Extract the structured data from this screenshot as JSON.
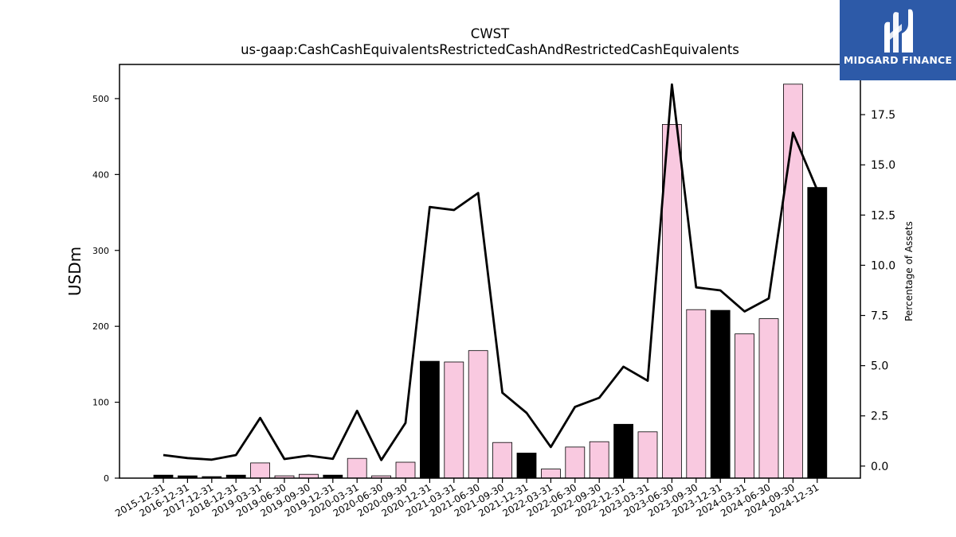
{
  "brand": {
    "name": "MIDGARD FINANCE"
  },
  "chart_data": {
    "type": "bar",
    "title": "CWST",
    "subtitle": "us-gaap:CashCashEquivalentsRestrictedCashAndRestrictedCashEquivalents",
    "ylabel": "USDm",
    "y2label": "Percentage of Assets",
    "ylim": [
      0,
      545
    ],
    "y2lim": [
      -0.6,
      20.0
    ],
    "yticks": [
      0,
      100,
      200,
      300,
      400,
      500
    ],
    "y2ticks": [
      "0.0",
      "2.5",
      "5.0",
      "7.5",
      "10.0",
      "12.5",
      "15.0",
      "17.5"
    ],
    "y2tick_values": [
      0.0,
      2.5,
      5.0,
      7.5,
      10.0,
      12.5,
      15.0,
      17.5
    ],
    "grid": false,
    "colors": {
      "annual": "#000000",
      "quarterly": "#f9c9e0",
      "line": "#000000"
    },
    "categories": [
      "2015-12-31",
      "2016-12-31",
      "2017-12-31",
      "2018-12-31",
      "2019-03-31",
      "2019-06-30",
      "2019-09-30",
      "2019-12-31",
      "2020-03-31",
      "2020-06-30",
      "2020-09-30",
      "2020-12-31",
      "2021-03-31",
      "2021-06-30",
      "2021-09-30",
      "2021-12-31",
      "2022-03-31",
      "2022-06-30",
      "2022-09-30",
      "2022-12-31",
      "2023-03-31",
      "2023-06-30",
      "2023-09-30",
      "2023-12-31",
      "2024-03-31",
      "2024-06-30",
      "2024-09-30",
      "2024-12-31"
    ],
    "series": [
      {
        "values": [
          4,
          3,
          2,
          4,
          20,
          3,
          5,
          4,
          26,
          3,
          21,
          154,
          153,
          168,
          47,
          33,
          12,
          41,
          48,
          71,
          61,
          466,
          222,
          221,
          190,
          210,
          519,
          383
        ],
        "period": [
          "annual",
          "annual",
          "annual",
          "annual",
          "quarter",
          "quarter",
          "quarter",
          "annual",
          "quarter",
          "quarter",
          "quarter",
          "annual",
          "quarter",
          "quarter",
          "quarter",
          "annual",
          "quarter",
          "quarter",
          "quarter",
          "annual",
          "quarter",
          "quarter",
          "quarter",
          "annual",
          "quarter",
          "quarter",
          "quarter",
          "annual"
        ]
      },
      {
        "axis": "right",
        "type": "line",
        "values": [
          0.55,
          0.4,
          0.32,
          0.55,
          2.4,
          0.35,
          0.52,
          0.36,
          2.75,
          0.3,
          2.15,
          12.9,
          12.75,
          13.6,
          3.65,
          2.65,
          0.95,
          2.95,
          3.4,
          4.95,
          4.25,
          19.0,
          8.9,
          8.75,
          7.7,
          8.35,
          16.6,
          13.75
        ]
      }
    ]
  }
}
